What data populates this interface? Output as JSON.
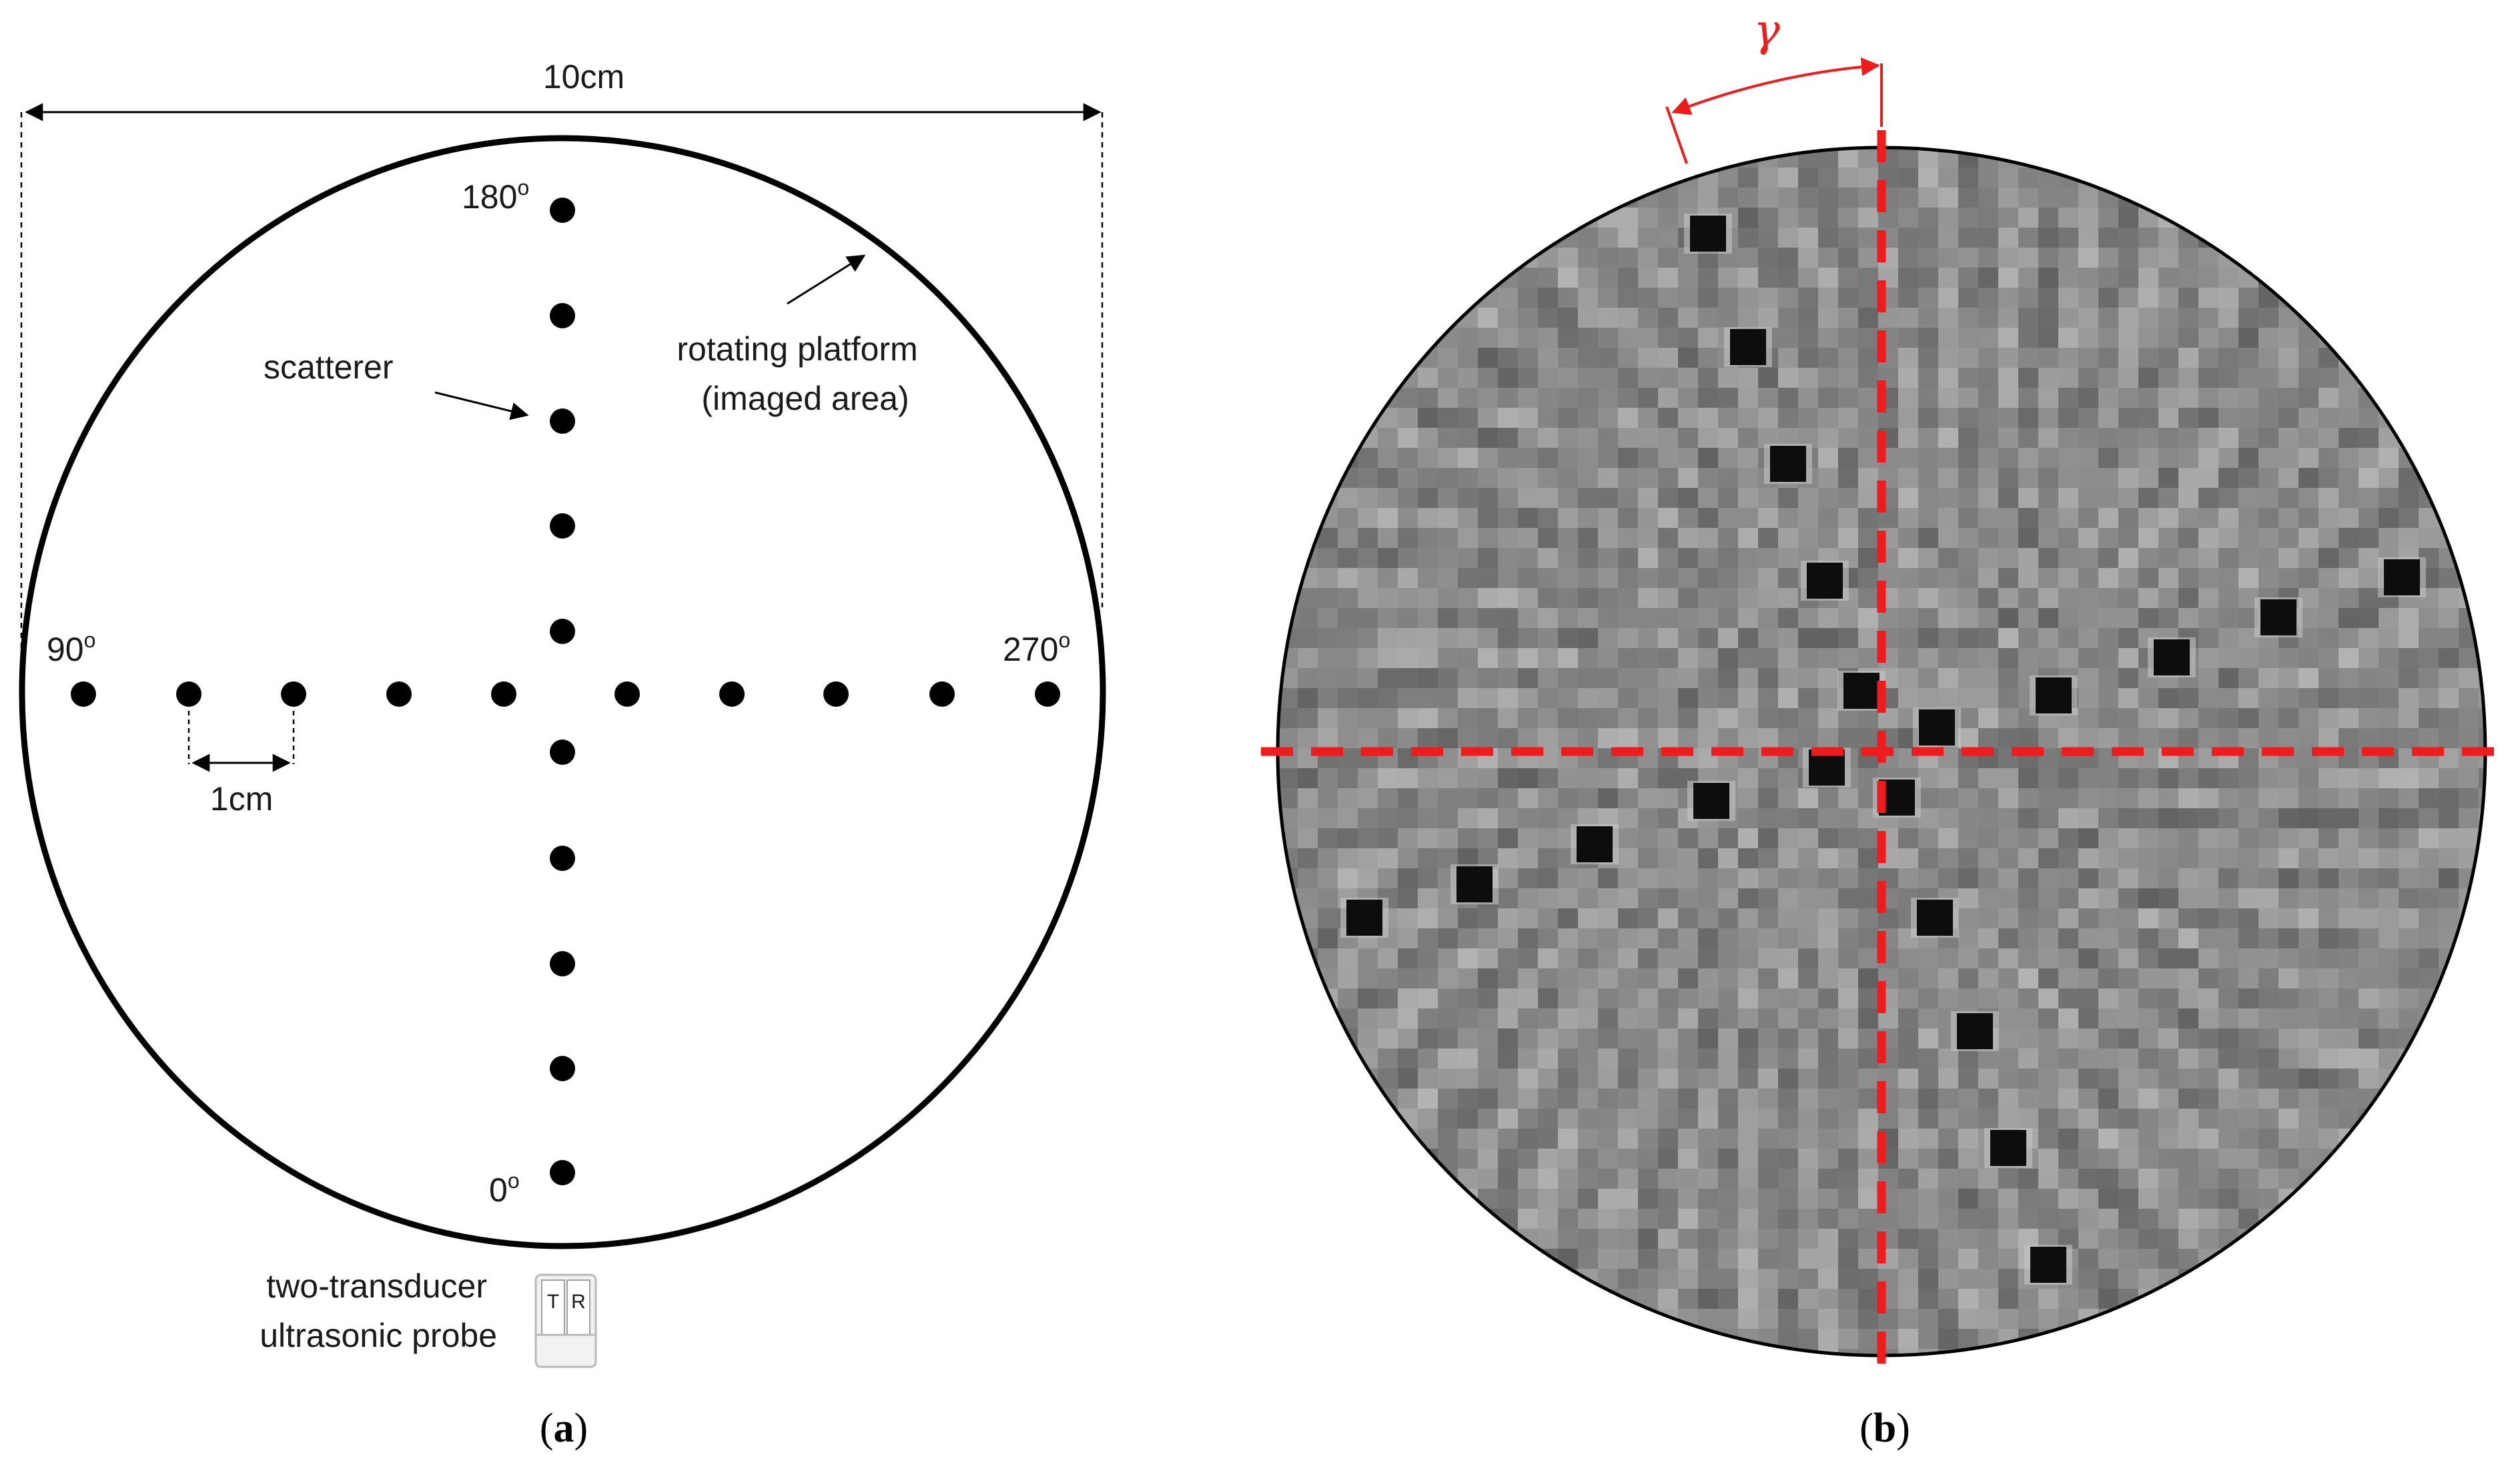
{
  "panel_a": {
    "width_label": "10cm",
    "scatterer_label": "scatterer",
    "platform_label_line1": "rotating platform",
    "platform_label_line2": "(imaged area)",
    "angle_180": "180",
    "angle_90": "90",
    "angle_270": "270",
    "angle_0": "0",
    "degree_mark": "o",
    "spacing_label": "1cm",
    "probe_label_line1": "two-transducer",
    "probe_label_line2": "ultrasonic probe",
    "probe_t": "T",
    "probe_r": "R",
    "caption_open": "(",
    "caption_letter": "a",
    "caption_close": ")"
  },
  "panel_b": {
    "angle_symbol": "γ",
    "caption_open": "(",
    "caption_letter": "b",
    "caption_close": ")"
  },
  "colors": {
    "accent_red": "#ee1c1c",
    "image_gray": "#8c8c8c",
    "scatterer_black": "#000000"
  },
  "icons": [
    "probe-icon"
  ]
}
